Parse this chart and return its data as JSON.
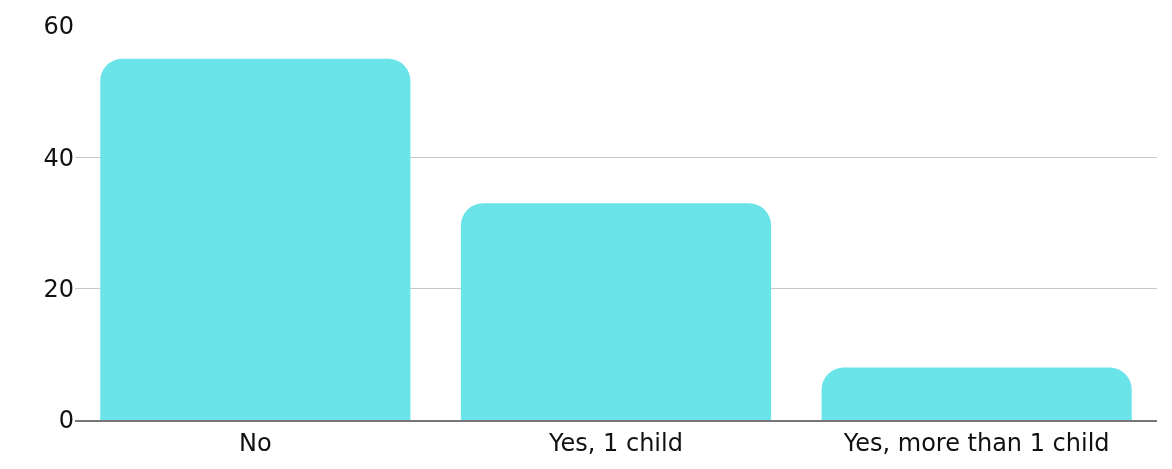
{
  "chart_data": {
    "type": "bar",
    "categories": [
      "No",
      "Yes, 1 child",
      "Yes, more than 1 child"
    ],
    "values": [
      55,
      33,
      8
    ],
    "color": "#6ae4e8",
    "ylim": [
      0,
      60
    ],
    "yticks": [
      0,
      20,
      40,
      60
    ],
    "grid": "y"
  }
}
